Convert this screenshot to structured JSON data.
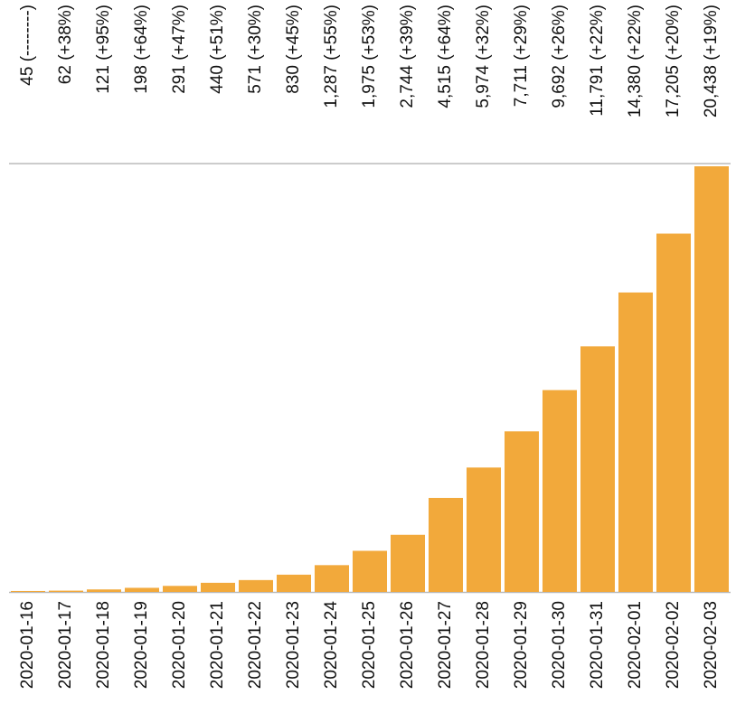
{
  "chart_data": {
    "type": "bar",
    "categories": [
      "2020-01-16",
      "2020-01-17",
      "2020-01-18",
      "2020-01-19",
      "2020-01-20",
      "2020-01-21",
      "2020-01-22",
      "2020-01-23",
      "2020-01-24",
      "2020-01-25",
      "2020-01-26",
      "2020-01-27",
      "2020-01-28",
      "2020-01-29",
      "2020-01-30",
      "2020-01-31",
      "2020-02-01",
      "2020-02-02",
      "2020-02-03"
    ],
    "values": [
      45,
      62,
      121,
      198,
      291,
      440,
      571,
      830,
      1287,
      1975,
      2744,
      4515,
      5974,
      7711,
      9692,
      11791,
      14380,
      17205,
      20438
    ],
    "value_labels": [
      "45 (--------)",
      "62 (+38%)",
      "121 (+95%)",
      "198 (+64%)",
      "291 (+47%)",
      "440 (+51%)",
      "571 (+30%)",
      "830 (+45%)",
      "1,287 (+55%)",
      "1,975 (+53%)",
      "2,744 (+39%)",
      "4,515 (+64%)",
      "5,974 (+32%)",
      "7,711 (+29%)",
      "9,692 (+26%)",
      "11,791 (+22%)",
      "14,380 (+22%)",
      "17,205 (+20%)",
      "20,438 (+19%)"
    ],
    "color": "#f2a93b",
    "ylim": [
      0,
      20438
    ]
  }
}
